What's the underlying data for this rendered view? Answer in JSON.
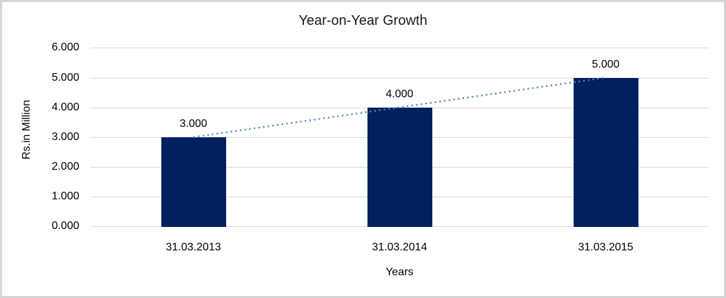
{
  "chart_data": {
    "type": "bar",
    "title": "Year-on-Year Growth",
    "xlabel": "Years",
    "ylabel": "Rs.in Million",
    "categories": [
      "31.03.2013",
      "31.03.2014",
      "31.03.2015"
    ],
    "values": [
      3,
      4,
      5
    ],
    "data_labels": [
      "3.000",
      "4.000",
      "5.000"
    ],
    "ytick_labels": [
      "0.000",
      "1.000",
      "2.000",
      "3.000",
      "4.000",
      "5.000",
      "6.000"
    ],
    "ylim": [
      0,
      6
    ],
    "grid": true,
    "legend": "none",
    "trendline": {
      "style": "dotted",
      "from": [
        0,
        3
      ],
      "to": [
        2,
        5
      ]
    },
    "colors": {
      "bar": "#002060",
      "gridline": "#d9d9d9",
      "trendline": "#4f86c6",
      "text": "#000000",
      "frame_border": "#d6d6d6",
      "background": "#ffffff"
    }
  }
}
